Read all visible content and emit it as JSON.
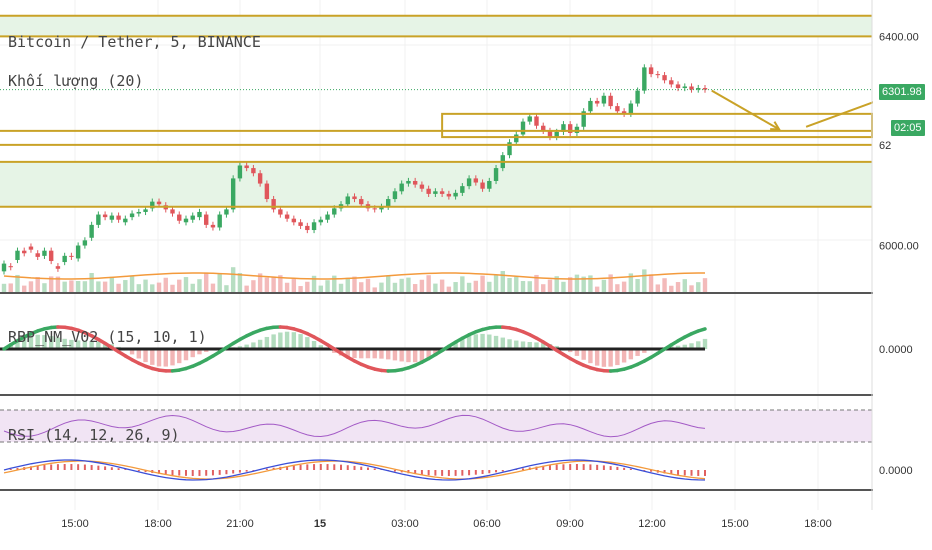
{
  "chart_data": {
    "type": "candlestick",
    "symbol_legend": "Bitcoin / Tether, 5, BINANCE",
    "volume_legend": "Khối lượng (20)",
    "last_price": "6301.98",
    "countdown": "02:05",
    "price_axis_ticks": [
      "6400.00",
      "6000.00"
    ],
    "partial_tick": "62",
    "time_ticks": [
      "15:00",
      "18:00",
      "21:00",
      "15",
      "03:00",
      "06:00",
      "09:00",
      "12:00",
      "15:00",
      "18:00"
    ],
    "bold_time_tick": "15",
    "price_range": [
      5910,
      6460
    ],
    "price_series": [
      [
        5950,
        5965
      ],
      [
        5960,
        5958
      ],
      [
        5972,
        5990
      ],
      [
        5990,
        5985
      ],
      [
        5998,
        5992
      ],
      [
        5985,
        5978
      ],
      [
        5980,
        5990
      ],
      [
        5990,
        5970
      ],
      [
        5960,
        5955
      ],
      [
        5968,
        5980
      ],
      [
        5980,
        5978
      ],
      [
        5975,
        6000
      ],
      [
        6000,
        6010
      ],
      [
        6015,
        6040
      ],
      [
        6040,
        6060
      ],
      [
        6060,
        6055
      ],
      [
        6050,
        6058
      ],
      [
        6058,
        6050
      ],
      [
        6045,
        6052
      ],
      [
        6055,
        6062
      ],
      [
        6062,
        6065
      ],
      [
        6065,
        6070
      ],
      [
        6072,
        6085
      ],
      [
        6085,
        6080
      ],
      [
        6078,
        6070
      ],
      [
        6070,
        6062
      ],
      [
        6060,
        6048
      ],
      [
        6045,
        6052
      ],
      [
        6050,
        6058
      ],
      [
        6055,
        6065
      ],
      [
        6060,
        6040
      ],
      [
        6040,
        6035
      ],
      [
        6035,
        6060
      ],
      [
        6060,
        6070
      ],
      [
        6070,
        6130
      ],
      [
        6130,
        6155
      ],
      [
        6155,
        6150
      ],
      [
        6150,
        6140
      ],
      [
        6140,
        6120
      ],
      [
        6120,
        6090
      ],
      [
        6090,
        6070
      ],
      [
        6070,
        6060
      ],
      [
        6060,
        6052
      ],
      [
        6052,
        6045
      ],
      [
        6045,
        6038
      ],
      [
        6038,
        6030
      ],
      [
        6030,
        6045
      ],
      [
        6045,
        6050
      ],
      [
        6050,
        6060
      ],
      [
        6060,
        6072
      ],
      [
        6072,
        6080
      ],
      [
        6080,
        6095
      ],
      [
        6095,
        6090
      ],
      [
        6090,
        6080
      ],
      [
        6080,
        6072
      ],
      [
        6072,
        6070
      ],
      [
        6070,
        6075
      ],
      [
        6075,
        6090
      ],
      [
        6090,
        6105
      ],
      [
        6105,
        6120
      ],
      [
        6120,
        6125
      ],
      [
        6125,
        6118
      ],
      [
        6118,
        6110
      ],
      [
        6110,
        6100
      ],
      [
        6100,
        6105
      ],
      [
        6105,
        6100
      ],
      [
        6100,
        6095
      ],
      [
        6095,
        6102
      ],
      [
        6102,
        6115
      ],
      [
        6115,
        6130
      ],
      [
        6130,
        6122
      ],
      [
        6122,
        6110
      ],
      [
        6110,
        6125
      ],
      [
        6125,
        6150
      ],
      [
        6150,
        6175
      ],
      [
        6175,
        6200
      ],
      [
        6200,
        6215
      ],
      [
        6215,
        6240
      ],
      [
        6240,
        6250
      ],
      [
        6250,
        6232
      ],
      [
        6232,
        6222
      ],
      [
        6222,
        6210
      ],
      [
        6210,
        6220
      ],
      [
        6220,
        6235
      ],
      [
        6235,
        6218
      ],
      [
        6218,
        6230
      ],
      [
        6230,
        6260
      ],
      [
        6260,
        6280
      ],
      [
        6280,
        6275
      ],
      [
        6275,
        6290
      ],
      [
        6290,
        6270
      ],
      [
        6270,
        6260
      ],
      [
        6260,
        6255
      ],
      [
        6255,
        6275
      ],
      [
        6275,
        6300
      ],
      [
        6300,
        6345
      ],
      [
        6345,
        6332
      ],
      [
        6332,
        6330
      ],
      [
        6330,
        6320
      ],
      [
        6320,
        6312
      ],
      [
        6312,
        6305
      ],
      [
        6305,
        6308
      ],
      [
        6308,
        6302
      ],
      [
        6302,
        6305
      ],
      [
        6305,
        6301.98
      ]
    ],
    "horizontal_lines": [
      6445,
      6405,
      6222,
      6195,
      6162,
      6075
    ],
    "zones": [
      [
        6405,
        6445
      ],
      [
        6075,
        6162
      ]
    ],
    "boxes": [
      {
        "x0_index": 65,
        "x1_index": 160,
        "top": 6255,
        "bottom": 6210
      }
    ],
    "arrows": [
      {
        "from_index": 105,
        "from_price": 6300,
        "to_index": 115,
        "to_price": 6225
      },
      {
        "from_index": 119,
        "from_price": 6230,
        "to_index": 141,
        "to_price": 6335
      }
    ],
    "panes": [
      {
        "name": "volume",
        "legend": "Khối lượng (20)"
      },
      {
        "name": "rbp",
        "legend": "RBP_NM_V02 (15, 10, 1)",
        "axis_label": "0.0000"
      },
      {
        "name": "rsi",
        "legend": "RSI (14, 12, 26, 9)",
        "axis_label": "0.0000"
      }
    ],
    "colors": {
      "up": "#3aa862",
      "down": "#e0565b",
      "hline": "#c9a227",
      "zone": "#e6f4e6",
      "dotted_price": "#3aa862",
      "rsi_band": "#f1e4f4",
      "rsi_line": "#a35ac6",
      "macd_blue": "#3a4fd8",
      "macd_orange": "#f39a3c",
      "volume_ma": "#f39a3c"
    }
  }
}
